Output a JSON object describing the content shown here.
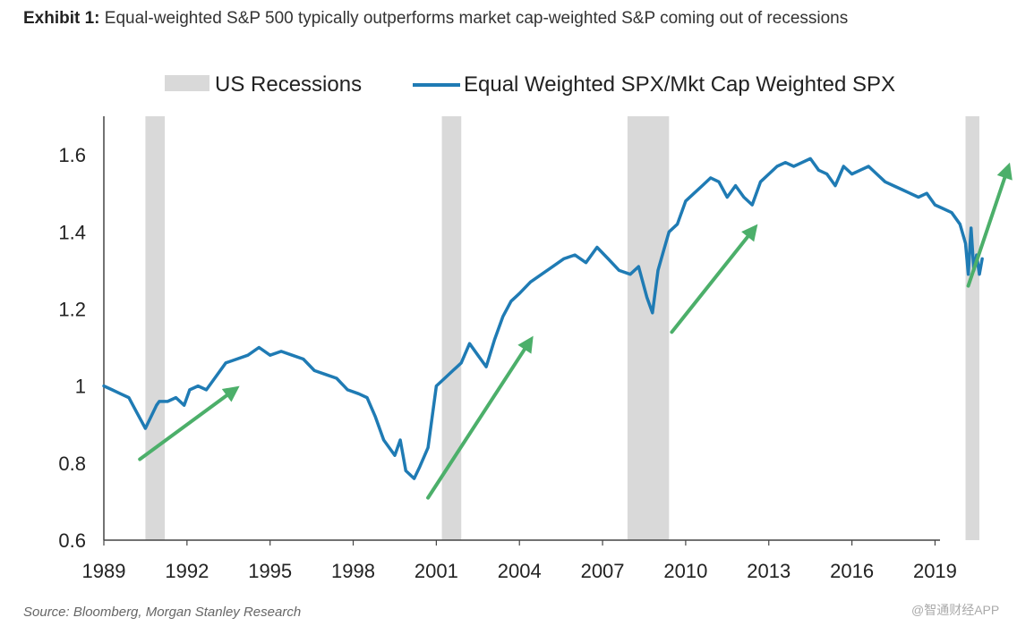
{
  "title_bold": "Exhibit 1:",
  "title_text": "Equal-weighted S&P 500 typically outperforms market cap-weighted S&P coming out of recessions",
  "source": "Source: Bloomberg, Morgan Stanley Research",
  "watermark": "@智通财经APP",
  "colors": {
    "line": "#1f7bb4",
    "recession": "#d9d9d9",
    "arrow": "#4caf6a",
    "axis": "#444444"
  },
  "chart_data": {
    "type": "line",
    "title": "Equal-weighted S&P 500 typically outperforms market cap-weighted S&P coming out of recessions",
    "xlabel": "",
    "ylabel": "",
    "xlim": [
      1989.0,
      2021.7
    ],
    "ylim": [
      0.6,
      1.7
    ],
    "x_ticks": [
      1989,
      1992,
      1995,
      1998,
      2001,
      2004,
      2007,
      2010,
      2013,
      2016,
      2019
    ],
    "y_ticks": [
      0.6,
      0.8,
      1.0,
      1.2,
      1.4,
      1.6
    ],
    "y_tick_labels": [
      "0.6",
      "0.8",
      "1",
      "1.2",
      "1.4",
      "1.6"
    ],
    "legend": [
      {
        "label": "US Recessions",
        "kind": "band"
      },
      {
        "label": "Equal Weighted SPX/Mkt Cap Weighted SPX",
        "kind": "line"
      }
    ],
    "recessions": [
      [
        1990.5,
        1991.2
      ],
      [
        2001.2,
        2001.9
      ],
      [
        2007.9,
        2009.4
      ],
      [
        2020.1,
        2020.6
      ]
    ],
    "series": [
      {
        "name": "Equal Weighted SPX/Mkt Cap Weighted SPX",
        "x": [
          1989.0,
          1989.3,
          1989.6,
          1989.9,
          1990.2,
          1990.5,
          1990.7,
          1990.9,
          1991.0,
          1991.3,
          1991.6,
          1991.9,
          1992.1,
          1992.4,
          1992.7,
          1993.0,
          1993.4,
          1993.8,
          1994.2,
          1994.6,
          1995.0,
          1995.4,
          1995.8,
          1996.2,
          1996.6,
          1997.0,
          1997.4,
          1997.8,
          1998.2,
          1998.5,
          1998.8,
          1999.1,
          1999.3,
          1999.5,
          1999.7,
          1999.9,
          2000.2,
          2000.4,
          2000.7,
          2001.0,
          2001.3,
          2001.6,
          2001.9,
          2002.2,
          2002.5,
          2002.8,
          2003.1,
          2003.4,
          2003.7,
          2004.0,
          2004.4,
          2004.8,
          2005.2,
          2005.6,
          2006.0,
          2006.4,
          2006.8,
          2007.2,
          2007.6,
          2008.0,
          2008.3,
          2008.6,
          2008.8,
          2009.0,
          2009.2,
          2009.4,
          2009.7,
          2010.0,
          2010.3,
          2010.6,
          2010.9,
          2011.2,
          2011.5,
          2011.8,
          2012.1,
          2012.4,
          2012.7,
          2013.0,
          2013.3,
          2013.6,
          2013.9,
          2014.2,
          2014.5,
          2014.8,
          2015.1,
          2015.4,
          2015.7,
          2016.0,
          2016.3,
          2016.6,
          2016.9,
          2017.2,
          2017.5,
          2017.8,
          2018.1,
          2018.4,
          2018.7,
          2019.0,
          2019.3,
          2019.6,
          2019.9,
          2020.1,
          2020.2,
          2020.3,
          2020.4,
          2020.5,
          2020.6,
          2020.7
        ],
        "values": [
          1.0,
          0.99,
          0.98,
          0.97,
          0.93,
          0.89,
          0.92,
          0.95,
          0.96,
          0.96,
          0.97,
          0.95,
          0.99,
          1.0,
          0.99,
          1.02,
          1.06,
          1.07,
          1.08,
          1.1,
          1.08,
          1.09,
          1.08,
          1.07,
          1.04,
          1.03,
          1.02,
          0.99,
          0.98,
          0.97,
          0.92,
          0.86,
          0.84,
          0.82,
          0.86,
          0.78,
          0.76,
          0.79,
          0.84,
          1.0,
          1.02,
          1.04,
          1.06,
          1.11,
          1.08,
          1.05,
          1.12,
          1.18,
          1.22,
          1.24,
          1.27,
          1.29,
          1.31,
          1.33,
          1.34,
          1.32,
          1.36,
          1.33,
          1.3,
          1.29,
          1.31,
          1.23,
          1.19,
          1.3,
          1.35,
          1.4,
          1.42,
          1.48,
          1.5,
          1.52,
          1.54,
          1.53,
          1.49,
          1.52,
          1.49,
          1.47,
          1.53,
          1.55,
          1.57,
          1.58,
          1.57,
          1.58,
          1.59,
          1.56,
          1.55,
          1.52,
          1.57,
          1.55,
          1.56,
          1.57,
          1.55,
          1.53,
          1.52,
          1.51,
          1.5,
          1.49,
          1.5,
          1.47,
          1.46,
          1.45,
          1.42,
          1.37,
          1.29,
          1.41,
          1.3,
          1.34,
          1.29,
          1.33
        ]
      }
    ],
    "annotations": [
      {
        "type": "arrow",
        "from": [
          1990.3,
          0.81
        ],
        "to": [
          1993.9,
          1.0
        ]
      },
      {
        "type": "arrow",
        "from": [
          2000.7,
          0.71
        ],
        "to": [
          2004.5,
          1.13
        ]
      },
      {
        "type": "arrow",
        "from": [
          2009.5,
          1.14
        ],
        "to": [
          2012.6,
          1.42
        ]
      },
      {
        "type": "arrow",
        "from": [
          2020.2,
          1.26
        ],
        "to": [
          2021.7,
          1.58
        ]
      }
    ]
  }
}
